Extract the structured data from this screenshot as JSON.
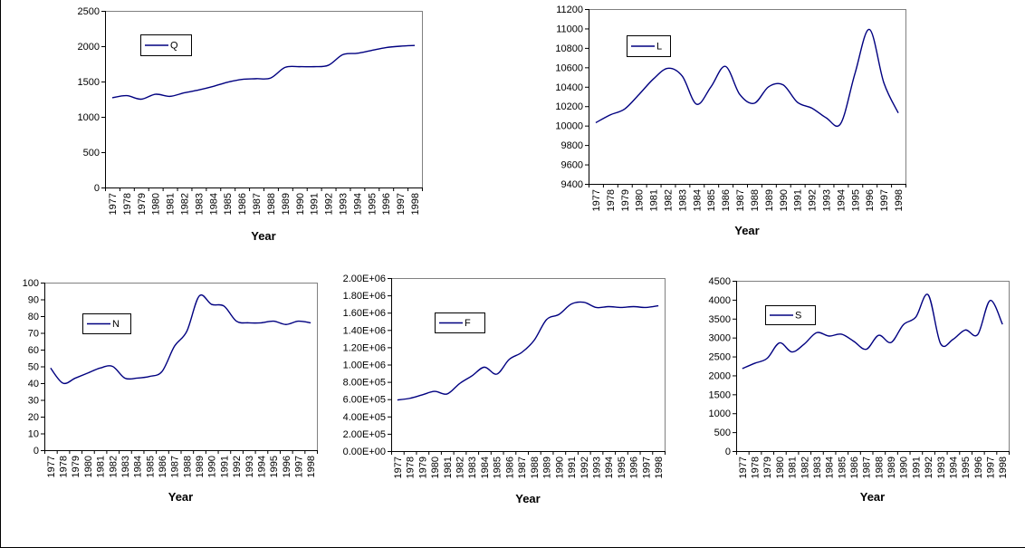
{
  "chart_data": [
    {
      "type": "line",
      "xlabel": "Year",
      "ylabel": "",
      "ylim": [
        0,
        2500
      ],
      "yticks": [
        "0",
        "500",
        "1000",
        "1500",
        "2000",
        "2500"
      ],
      "x": [
        "1977",
        "1978",
        "1979",
        "1980",
        "1981",
        "1982",
        "1983",
        "1984",
        "1985",
        "1986",
        "1987",
        "1988",
        "1989",
        "1990",
        "1991",
        "1992",
        "1993",
        "1994",
        "1995",
        "1996",
        "1997",
        "1998"
      ],
      "series": [
        {
          "name": "Q",
          "values": [
            1270,
            1300,
            1250,
            1320,
            1290,
            1340,
            1380,
            1430,
            1490,
            1530,
            1540,
            1550,
            1700,
            1710,
            1710,
            1730,
            1880,
            1900,
            1940,
            1980,
            2000,
            2010
          ]
        }
      ],
      "legend": "top-left",
      "grid": false,
      "line_color": "#000080"
    },
    {
      "type": "line",
      "xlabel": "Year",
      "ylabel": "",
      "ylim": [
        9400,
        11200
      ],
      "yticks": [
        "9400",
        "9600",
        "9800",
        "10000",
        "10200",
        "10400",
        "10600",
        "10800",
        "11000",
        "11200"
      ],
      "x": [
        "1977",
        "1978",
        "1979",
        "1980",
        "1981",
        "1982",
        "1983",
        "1984",
        "1985",
        "1986",
        "1987",
        "1988",
        "1989",
        "1990",
        "1991",
        "1992",
        "1993",
        "1994",
        "1995",
        "1996",
        "1997",
        "1998"
      ],
      "series": [
        {
          "name": "L",
          "values": [
            10030,
            10110,
            10170,
            10320,
            10480,
            10590,
            10510,
            10220,
            10400,
            10610,
            10320,
            10230,
            10400,
            10420,
            10240,
            10180,
            10080,
            10020,
            10540,
            10990,
            10440,
            10130
          ]
        }
      ],
      "legend": "top-left",
      "grid": false,
      "line_color": "#000080"
    },
    {
      "type": "line",
      "xlabel": "Year",
      "ylabel": "",
      "ylim": [
        0,
        100
      ],
      "yticks": [
        "0",
        "10",
        "20",
        "30",
        "40",
        "50",
        "60",
        "70",
        "80",
        "90",
        "100"
      ],
      "x": [
        "1977",
        "1978",
        "1979",
        "1980",
        "1981",
        "1982",
        "1983",
        "1984",
        "1985",
        "1986",
        "1987",
        "1988",
        "1989",
        "1990",
        "1991",
        "1992",
        "1993",
        "1994",
        "1995",
        "1996",
        "1997",
        "1998"
      ],
      "series": [
        {
          "name": "N",
          "values": [
            49,
            40,
            43,
            46,
            49,
            50,
            43,
            43,
            44,
            47,
            62,
            71,
            92,
            87,
            86,
            77,
            76,
            76,
            77,
            75,
            77,
            76
          ]
        }
      ],
      "legend": "top-left",
      "grid": false,
      "line_color": "#000080"
    },
    {
      "type": "line",
      "xlabel": "Year",
      "ylabel": "",
      "ylim": [
        0,
        2000000
      ],
      "yticks": [
        "0.00E+00",
        "2.00E+05",
        "4.00E+05",
        "6.00E+05",
        "8.00E+05",
        "1.00E+06",
        "1.20E+06",
        "1.40E+06",
        "1.60E+06",
        "1.80E+06",
        "2.00E+06"
      ],
      "x": [
        "1977",
        "1978",
        "1979",
        "1980",
        "1981",
        "1982",
        "1983",
        "1984",
        "1985",
        "1986",
        "1987",
        "1988",
        "1989",
        "1990",
        "1991",
        "1992",
        "1993",
        "1994",
        "1995",
        "1996",
        "1997",
        "1998"
      ],
      "series": [
        {
          "name": "F",
          "values": [
            590000,
            610000,
            650000,
            690000,
            660000,
            780000,
            870000,
            970000,
            890000,
            1060000,
            1140000,
            1280000,
            1520000,
            1580000,
            1700000,
            1720000,
            1660000,
            1670000,
            1660000,
            1670000,
            1660000,
            1680000
          ]
        }
      ],
      "legend": "top-left",
      "grid": false,
      "line_color": "#000080"
    },
    {
      "type": "line",
      "xlabel": "Year",
      "ylabel": "",
      "ylim": [
        0,
        4500
      ],
      "yticks": [
        "0",
        "500",
        "1000",
        "1500",
        "2000",
        "2500",
        "3000",
        "3500",
        "4000",
        "4500"
      ],
      "x": [
        "1977",
        "1978",
        "1979",
        "1980",
        "1981",
        "1982",
        "1983",
        "1984",
        "1985",
        "1986",
        "1987",
        "1988",
        "1989",
        "1990",
        "1991",
        "1992",
        "1993",
        "1994",
        "1995",
        "1996",
        "1997",
        "1998"
      ],
      "series": [
        {
          "name": "S",
          "values": [
            2180,
            2320,
            2450,
            2860,
            2620,
            2830,
            3130,
            3040,
            3090,
            2900,
            2690,
            3060,
            2870,
            3340,
            3540,
            4130,
            2840,
            2950,
            3200,
            3080,
            3980,
            3350
          ]
        }
      ],
      "legend": "top-left",
      "grid": false,
      "line_color": "#000080"
    }
  ]
}
